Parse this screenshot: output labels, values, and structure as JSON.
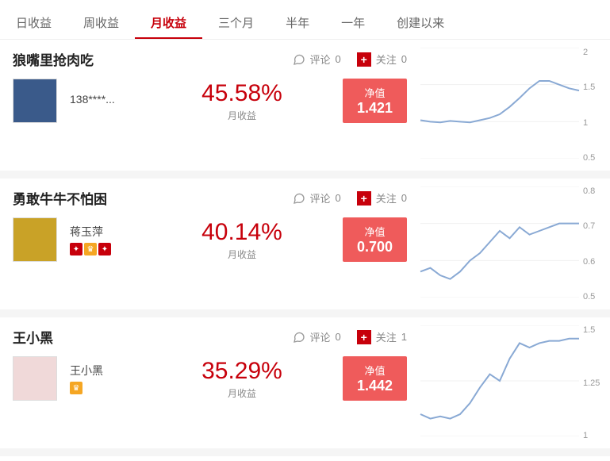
{
  "tabs": {
    "items": [
      "日收益",
      "周收益",
      "月收益",
      "三个月",
      "半年",
      "一年",
      "创建以来"
    ],
    "active_index": 2
  },
  "labels": {
    "comment": "评论",
    "follow": "关注",
    "return_label": "月收益",
    "nav_label": "净值"
  },
  "colors": {
    "brand": "#c7000b",
    "nav_bg": "#ef5b5b",
    "line": "#89a9d4",
    "grid": "#f0f0f0",
    "text_muted": "#888"
  },
  "cards": [
    {
      "title": "狼嘴里抢肉吃",
      "comment_count": 0,
      "follow_count": 0,
      "avatar_bg": "#3a5a8a",
      "username": "138****...",
      "badges": [],
      "return_pct": "45.58%",
      "nav": "1.421",
      "chart": {
        "yticks": [
          "2",
          "1.5",
          "1",
          "0.5"
        ],
        "ylim": [
          0.5,
          2
        ],
        "points": [
          1.02,
          1.0,
          0.99,
          1.01,
          1.0,
          0.99,
          1.02,
          1.05,
          1.1,
          1.2,
          1.32,
          1.45,
          1.55,
          1.55,
          1.5,
          1.45,
          1.42
        ]
      }
    },
    {
      "title": "勇敢牛牛不怕困",
      "comment_count": 0,
      "follow_count": 0,
      "avatar_bg": "#c9a227",
      "username": "蒋玉萍",
      "badges": [
        "red",
        "gold",
        "red"
      ],
      "return_pct": "40.14%",
      "nav": "0.700",
      "chart": {
        "yticks": [
          "0.8",
          "0.7",
          "0.6",
          "0.5"
        ],
        "ylim": [
          0.5,
          0.8
        ],
        "points": [
          0.57,
          0.58,
          0.56,
          0.55,
          0.57,
          0.6,
          0.62,
          0.65,
          0.68,
          0.66,
          0.69,
          0.67,
          0.68,
          0.69,
          0.7,
          0.7,
          0.7
        ]
      }
    },
    {
      "title": "王小黑",
      "comment_count": 0,
      "follow_count": 1,
      "avatar_bg": "#f0d9d9",
      "username": "王小黑",
      "badges": [
        "gold"
      ],
      "return_pct": "35.29%",
      "nav": "1.442",
      "chart": {
        "yticks": [
          "1.5",
          "1.25",
          "1"
        ],
        "ylim": [
          1,
          1.5
        ],
        "points": [
          1.1,
          1.08,
          1.09,
          1.08,
          1.1,
          1.15,
          1.22,
          1.28,
          1.25,
          1.35,
          1.42,
          1.4,
          1.42,
          1.43,
          1.43,
          1.44,
          1.44
        ]
      }
    }
  ]
}
